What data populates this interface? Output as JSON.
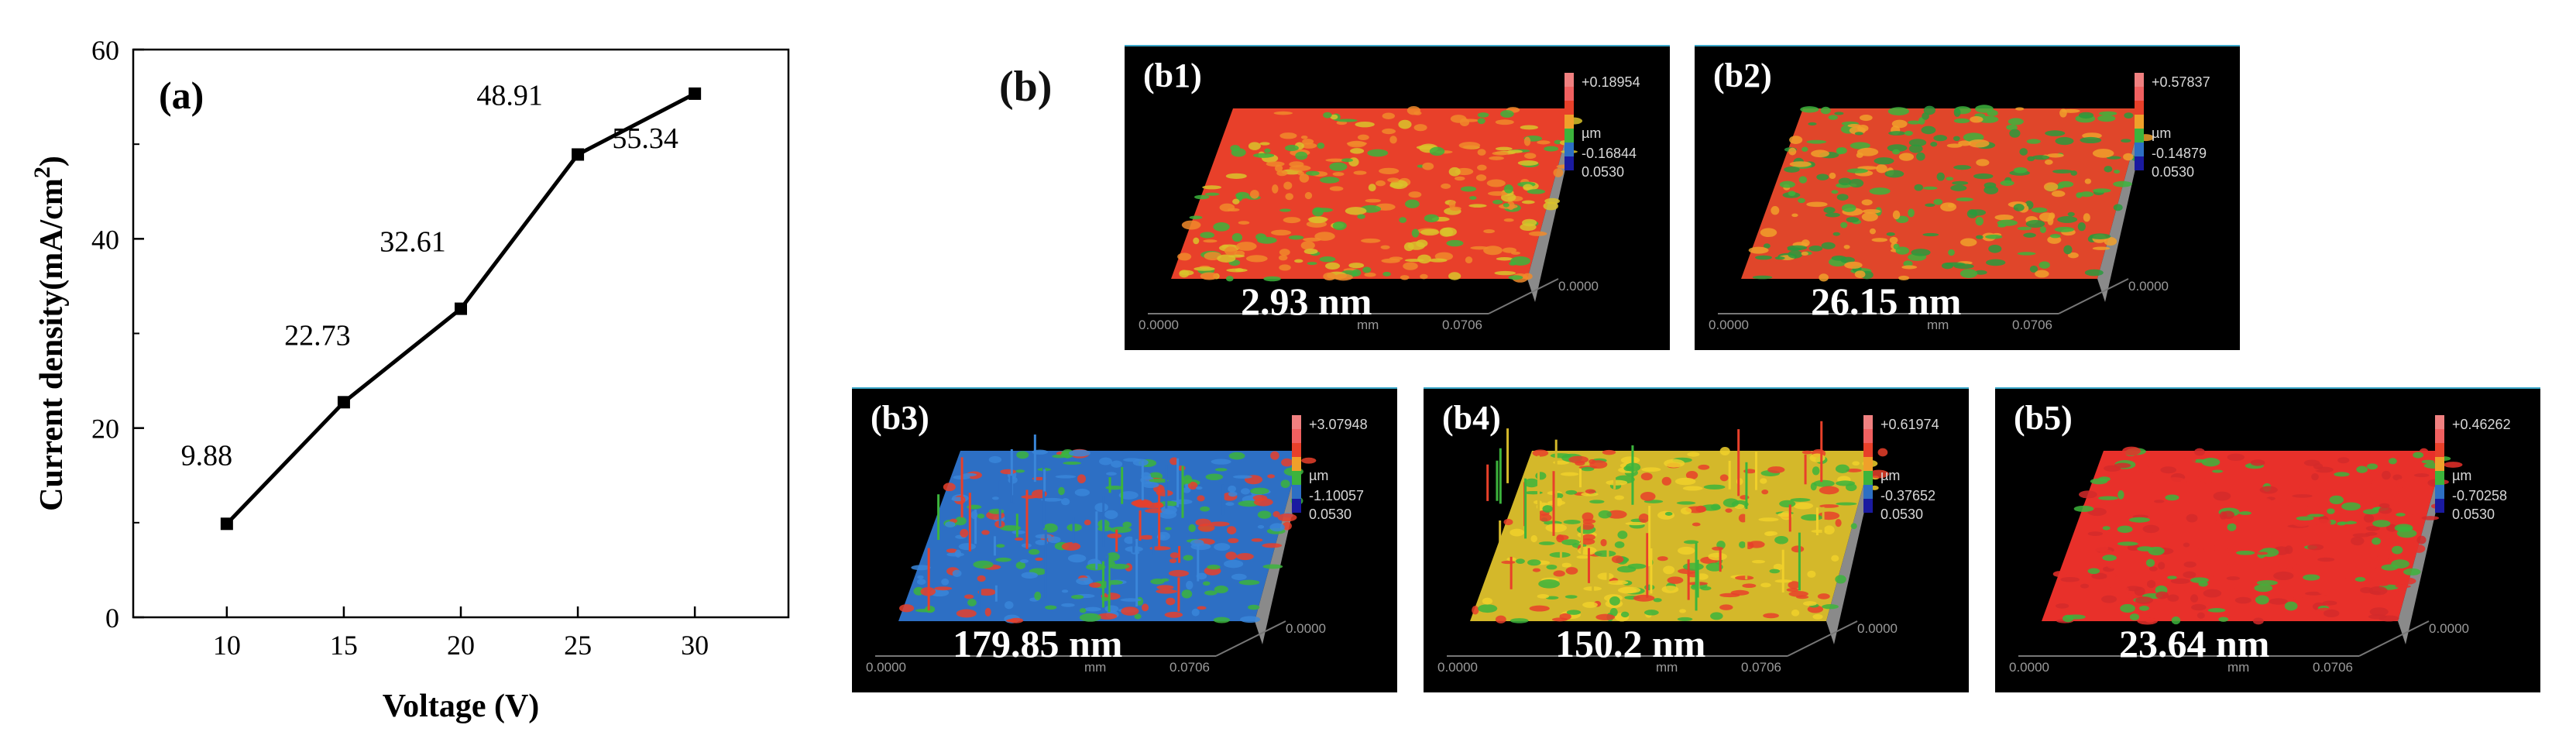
{
  "chart_data": {
    "type": "line",
    "panel_label": "(a)",
    "x": [
      10,
      15,
      20,
      25,
      30
    ],
    "y": [
      9.88,
      22.73,
      32.61,
      48.91,
      55.34
    ],
    "data_labels": [
      "9.88",
      "22.73",
      "32.61",
      "48.91",
      "55.34"
    ],
    "xlabel": "Voltage (V)",
    "ylabel_main": "Current density(mA/cm",
    "ylabel_sup": "2",
    "ylabel_close": ")",
    "xticks": [
      10,
      15,
      20,
      25,
      30
    ],
    "yticks": [
      0,
      20,
      40,
      60
    ],
    "xlim": [
      6,
      34
    ],
    "ylim": [
      0,
      60
    ],
    "line_color": "#000000",
    "marker": "square"
  },
  "group_label": "(b)",
  "panels": [
    {
      "label": "(b1)",
      "roughness": "2.93 nm",
      "scale_max": "+0.18954",
      "scale_min": "-0.16844",
      "scale_unit": "µm",
      "scale_extra": "0.0530",
      "axis_start": "0.0000",
      "axis_end": "0.0706",
      "axis_mid": "0.0000",
      "axis_unit": "mm",
      "dominant": "#e8402a"
    },
    {
      "label": "(b2)",
      "roughness": "26.15 nm",
      "scale_max": "+0.57837",
      "scale_min": "-0.14879",
      "scale_unit": "µm",
      "scale_extra": "0.0530",
      "axis_start": "0.0000",
      "axis_end": "0.0706",
      "axis_mid": "0.0000",
      "axis_unit": "mm",
      "dominant": "#e0462a"
    },
    {
      "label": "(b3)",
      "roughness": "179.85 nm",
      "scale_max": "+3.07948",
      "scale_min": "-1.10057",
      "scale_unit": "µm",
      "scale_extra": "0.0530",
      "axis_start": "0.0000",
      "axis_end": "0.0706",
      "axis_mid": "0.0000",
      "axis_unit": "mm",
      "dominant": "#2d6fc4"
    },
    {
      "label": "(b4)",
      "roughness": "150.2 nm",
      "scale_max": "+0.61974",
      "scale_min": "-0.37652",
      "scale_unit": "µm",
      "scale_extra": "0.0530",
      "axis_start": "0.0000",
      "axis_end": "0.0706",
      "axis_mid": "0.0000",
      "axis_unit": "mm",
      "dominant": "#d4b82a"
    },
    {
      "label": "(b5)",
      "roughness": "23.64 nm",
      "scale_max": "+0.46262",
      "scale_min": "-0.70258",
      "scale_unit": "µm",
      "scale_extra": "0.0530",
      "axis_start": "0.0000",
      "axis_end": "0.0706",
      "axis_mid": "0.0000",
      "axis_unit": "mm",
      "dominant": "#e8302a"
    }
  ]
}
